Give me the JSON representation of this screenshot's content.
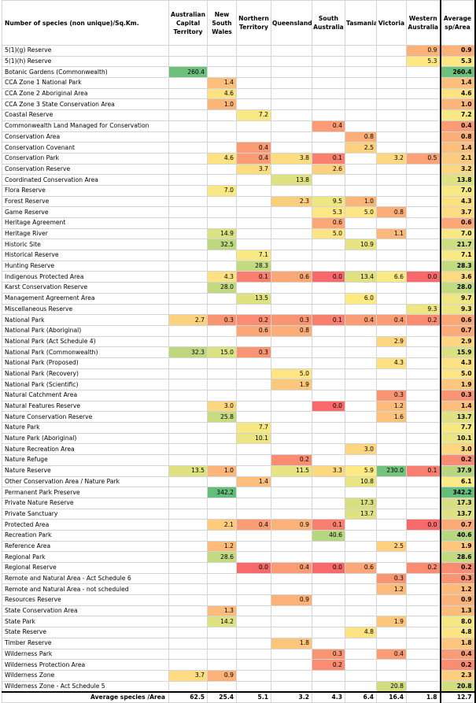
{
  "header": {
    "row_label": "Number of species (non unique)/Sq.Km.",
    "columns": [
      "Australian Capital Territory",
      "New South Wales",
      "Northern Territory",
      "Queensland",
      "South Australia",
      "Tasmania",
      "Victoria",
      "Western Australia",
      "Average sp/Area"
    ]
  },
  "colors": {
    "green": "#63be7b",
    "yellow": "#ffeb84",
    "red": "#f8696b"
  },
  "rows": [
    {
      "label": "5(1)(g) Reserve",
      "values": [
        "",
        "",
        "",
        "",
        "",
        "",
        "",
        "0.9",
        "0.9"
      ]
    },
    {
      "label": "5(1)(h) Reserve",
      "values": [
        "",
        "",
        "",
        "",
        "",
        "",
        "",
        "5.3",
        "5.3"
      ]
    },
    {
      "label": "Botanic Gardens (Commonwealth)",
      "values": [
        "260.4",
        "",
        "",
        "",
        "",
        "",
        "",
        "",
        "260.4"
      ]
    },
    {
      "label": "CCA Zone 1 National Park",
      "values": [
        "",
        "1.4",
        "",
        "",
        "",
        "",
        "",
        "",
        "1.4"
      ]
    },
    {
      "label": "CCA Zone 2 Aboriginal Area",
      "values": [
        "",
        "4.6",
        "",
        "",
        "",
        "",
        "",
        "",
        "4.6"
      ]
    },
    {
      "label": "CCA Zone 3 State Conservation Area",
      "values": [
        "",
        "1.0",
        "",
        "",
        "",
        "",
        "",
        "",
        "1.0"
      ]
    },
    {
      "label": "Coastal Reserve",
      "values": [
        "",
        "",
        "7.2",
        "",
        "",
        "",
        "",
        "",
        "7.2"
      ]
    },
    {
      "label": "Commonwealth Land Managed for Conservation",
      "values": [
        "",
        "",
        "",
        "",
        "0.4",
        "",
        "",
        "",
        "0.4"
      ]
    },
    {
      "label": "Conservation Area",
      "values": [
        "",
        "",
        "",
        "",
        "",
        "0.8",
        "",
        "",
        "0.8"
      ]
    },
    {
      "label": "Conservation Covenant",
      "values": [
        "",
        "",
        "0.4",
        "",
        "",
        "2.5",
        "",
        "",
        "1.4"
      ]
    },
    {
      "label": "Conservation Park",
      "values": [
        "",
        "4.6",
        "0.4",
        "3.8",
        "0.1",
        "",
        "3.2",
        "0.5",
        "2.1"
      ]
    },
    {
      "label": "Conservation Reserve",
      "values": [
        "",
        "",
        "3.7",
        "",
        "2.6",
        "",
        "",
        "",
        "3.2"
      ]
    },
    {
      "label": "Coordinated Conservation Area",
      "values": [
        "",
        "",
        "",
        "13.8",
        "",
        "",
        "",
        "",
        "13.8"
      ]
    },
    {
      "label": "Flora Reserve",
      "values": [
        "",
        "7.0",
        "",
        "",
        "",
        "",
        "",
        "",
        "7.0"
      ]
    },
    {
      "label": "Forest Reserve",
      "values": [
        "",
        "",
        "",
        "2.3",
        "9.5",
        "1.0",
        "",
        "",
        "4.3"
      ]
    },
    {
      "label": "Game Reserve",
      "values": [
        "",
        "",
        "",
        "",
        "5.3",
        "5.0",
        "0.8",
        "",
        "3.7"
      ]
    },
    {
      "label": "Heritage Agreement",
      "values": [
        "",
        "",
        "",
        "",
        "0.6",
        "",
        "",
        "",
        "0.6"
      ]
    },
    {
      "label": "Heritage River",
      "values": [
        "",
        "14.9",
        "",
        "",
        "5.0",
        "",
        "1.1",
        "",
        "7.0"
      ]
    },
    {
      "label": "Historic Site",
      "values": [
        "",
        "32.5",
        "",
        "",
        "",
        "10.9",
        "",
        "",
        "21.7"
      ]
    },
    {
      "label": "Historical Reserve",
      "values": [
        "",
        "",
        "7.1",
        "",
        "",
        "",
        "",
        "",
        "7.1"
      ]
    },
    {
      "label": "Hunting Reserve",
      "values": [
        "",
        "",
        "28.3",
        "",
        "",
        "",
        "",
        "",
        "28.3"
      ]
    },
    {
      "label": "Indigenous Protected Area",
      "values": [
        "",
        "4.3",
        "0.1",
        "0.6",
        "0.0",
        "13.4",
        "6.6",
        "0.0",
        "3.6"
      ]
    },
    {
      "label": "Karst Conservation Reserve",
      "values": [
        "",
        "28.0",
        "",
        "",
        "",
        "",
        "",
        "",
        "28.0"
      ]
    },
    {
      "label": "Management Agreement Area",
      "values": [
        "",
        "",
        "13.5",
        "",
        "",
        "6.0",
        "",
        "",
        "9.7"
      ]
    },
    {
      "label": "Miscellaneous Reserve",
      "values": [
        "",
        "",
        "",
        "",
        "",
        "",
        "",
        "9.3",
        "9.3"
      ]
    },
    {
      "label": "National Park",
      "values": [
        "2.7",
        "0.3",
        "0.2",
        "0.3",
        "0.1",
        "0.4",
        "0.4",
        "0.2",
        "0.6"
      ]
    },
    {
      "label": "National Park (Aboriginal)",
      "values": [
        "",
        "",
        "0.6",
        "0.8",
        "",
        "",
        "",
        "",
        "0.7"
      ]
    },
    {
      "label": "National Park (Act Schedule 4)",
      "values": [
        "",
        "",
        "",
        "",
        "",
        "",
        "2.9",
        "",
        "2.9"
      ]
    },
    {
      "label": "National Park (Commonwealth)",
      "values": [
        "32.3",
        "15.0",
        "0.3",
        "",
        "",
        "",
        "",
        "",
        "15.9"
      ]
    },
    {
      "label": "National Park (Proposed)",
      "values": [
        "",
        "",
        "",
        "",
        "",
        "",
        "4.3",
        "",
        "4.3"
      ]
    },
    {
      "label": "National Park (Recovery)",
      "values": [
        "",
        "",
        "",
        "5.0",
        "",
        "",
        "",
        "",
        "5.0"
      ]
    },
    {
      "label": "National Park (Scientific)",
      "values": [
        "",
        "",
        "",
        "1.9",
        "",
        "",
        "",
        "",
        "1.9"
      ]
    },
    {
      "label": "Natural Catchment Area",
      "values": [
        "",
        "",
        "",
        "",
        "",
        "",
        "0.3",
        "",
        "0.3"
      ]
    },
    {
      "label": "Natural Features Reserve",
      "values": [
        "",
        "3.0",
        "",
        "",
        "0.0",
        "",
        "1.2",
        "",
        "1.4"
      ]
    },
    {
      "label": "Nature Conservation Reserve",
      "values": [
        "",
        "25.8",
        "",
        "",
        "",
        "",
        "1.6",
        "",
        "13.7"
      ]
    },
    {
      "label": "Nature Park",
      "values": [
        "",
        "",
        "7.7",
        "",
        "",
        "",
        "",
        "",
        "7.7"
      ]
    },
    {
      "label": "Nature Park (Aboriginal)",
      "values": [
        "",
        "",
        "10.1",
        "",
        "",
        "",
        "",
        "",
        "10.1"
      ]
    },
    {
      "label": "Nature Recreation Area",
      "values": [
        "",
        "",
        "",
        "",
        "",
        "3.0",
        "",
        "",
        "3.0"
      ]
    },
    {
      "label": "Nature Refuge",
      "values": [
        "",
        "",
        "",
        "0.2",
        "",
        "",
        "",
        "",
        "0.2"
      ]
    },
    {
      "label": "Nature Reserve",
      "values": [
        "13.5",
        "1.0",
        "",
        "11.5",
        "3.3",
        "5.9",
        "230.0",
        "0.1",
        "37.9"
      ]
    },
    {
      "label": "Other Conservation Area / Nature Park",
      "values": [
        "",
        "",
        "1.4",
        "",
        "",
        "10.8",
        "",
        "",
        "6.1"
      ]
    },
    {
      "label": "Permanent Park Preserve",
      "values": [
        "",
        "342.2",
        "",
        "",
        "",
        "",
        "",
        "",
        "342.2"
      ]
    },
    {
      "label": "Private Nature Reserve",
      "values": [
        "",
        "",
        "",
        "",
        "",
        "17.3",
        "",
        "",
        "17.3"
      ]
    },
    {
      "label": "Private Sanctuary",
      "values": [
        "",
        "",
        "",
        "",
        "",
        "13.7",
        "",
        "",
        "13.7"
      ]
    },
    {
      "label": "Protected Area",
      "values": [
        "",
        "2.1",
        "0.4",
        "0.9",
        "0.1",
        "",
        "",
        "0.0",
        "0.7"
      ]
    },
    {
      "label": "Recreation Park",
      "values": [
        "",
        "",
        "",
        "",
        "40.6",
        "",
        "",
        "",
        "40.6"
      ]
    },
    {
      "label": "Reference Area",
      "values": [
        "",
        "1.2",
        "",
        "",
        "",
        "",
        "2.5",
        "",
        "1.9"
      ]
    },
    {
      "label": "Regional Park",
      "values": [
        "",
        "28.6",
        "",
        "",
        "",
        "",
        "",
        "",
        "28.6"
      ]
    },
    {
      "label": "Regional Reserve",
      "values": [
        "",
        "",
        "0.0",
        "0.4",
        "0.0",
        "0.6",
        "",
        "0.2",
        "0.2"
      ]
    },
    {
      "label": "Remote and Natural Area - Act Schedule 6",
      "values": [
        "",
        "",
        "",
        "",
        "",
        "",
        "0.3",
        "",
        "0.3"
      ]
    },
    {
      "label": "Remote and Natural Area - not scheduled",
      "values": [
        "",
        "",
        "",
        "",
        "",
        "",
        "1.2",
        "",
        "1.2"
      ]
    },
    {
      "label": "Resources Reserve",
      "values": [
        "",
        "",
        "",
        "0.9",
        "",
        "",
        "",
        "",
        "0.9"
      ]
    },
    {
      "label": "State Conservation Area",
      "values": [
        "",
        "1.3",
        "",
        "",
        "",
        "",
        "",
        "",
        "1.3"
      ]
    },
    {
      "label": "State Park",
      "values": [
        "",
        "14.2",
        "",
        "",
        "",
        "",
        "1.9",
        "",
        "8.0"
      ]
    },
    {
      "label": "State Reserve",
      "values": [
        "",
        "",
        "",
        "",
        "",
        "4.8",
        "",
        "",
        "4.8"
      ]
    },
    {
      "label": "Timber Reserve",
      "values": [
        "",
        "",
        "",
        "1.8",
        "",
        "",
        "",
        "",
        "1.8"
      ]
    },
    {
      "label": "Wilderness Park",
      "values": [
        "",
        "",
        "",
        "",
        "0.3",
        "",
        "0.4",
        "",
        "0.4"
      ]
    },
    {
      "label": "Wilderness Protection Area",
      "values": [
        "",
        "",
        "",
        "",
        "0.2",
        "",
        "",
        "",
        "0.2"
      ]
    },
    {
      "label": "Wilderness Zone",
      "values": [
        "3.7",
        "0.9",
        "",
        "",
        "",
        "",
        "",
        "",
        "2.3"
      ]
    },
    {
      "label": "Wilderness Zone - Act Schedule 5",
      "values": [
        "",
        "",
        "",
        "",
        "",
        "",
        "20.8",
        "",
        "20.8"
      ]
    }
  ],
  "footer": {
    "label": "Average species /Area",
    "values": [
      "62.5",
      "25.4",
      "5.1",
      "3.2",
      "4.3",
      "6.4",
      "16.4",
      "1.8",
      "12.7"
    ]
  }
}
